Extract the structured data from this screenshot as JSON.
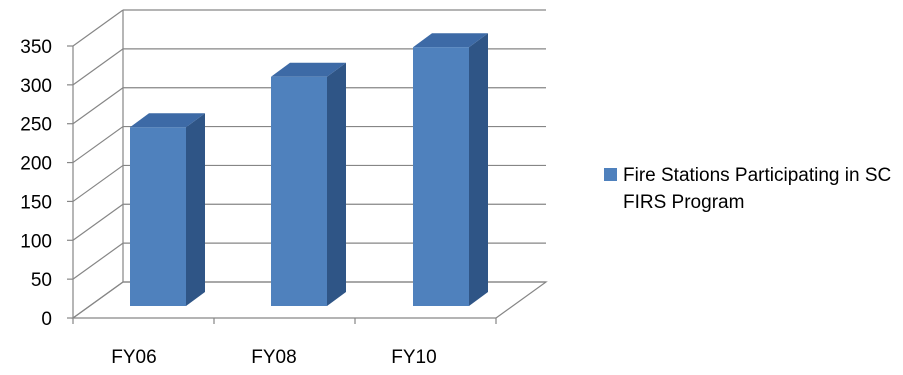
{
  "chart_data": {
    "type": "bar",
    "categories": [
      "FY06",
      "FY08",
      "FY10"
    ],
    "series": [
      {
        "name": "Fire Stations Participating in SC FIRS Program",
        "values": [
          230,
          295,
          333
        ]
      }
    ],
    "ylim": [
      0,
      350
    ],
    "yticks": [
      "0",
      "50",
      "100",
      "150",
      "200",
      "250",
      "300",
      "350"
    ],
    "grid": true,
    "three_d": true,
    "legend_position": "right",
    "title": "",
    "xlabel": "",
    "ylabel": ""
  },
  "colors": {
    "bar_front": "#4f81bd",
    "bar_side": "#2f5586",
    "bar_top": "#3d6aa6",
    "gridline": "#868686"
  }
}
